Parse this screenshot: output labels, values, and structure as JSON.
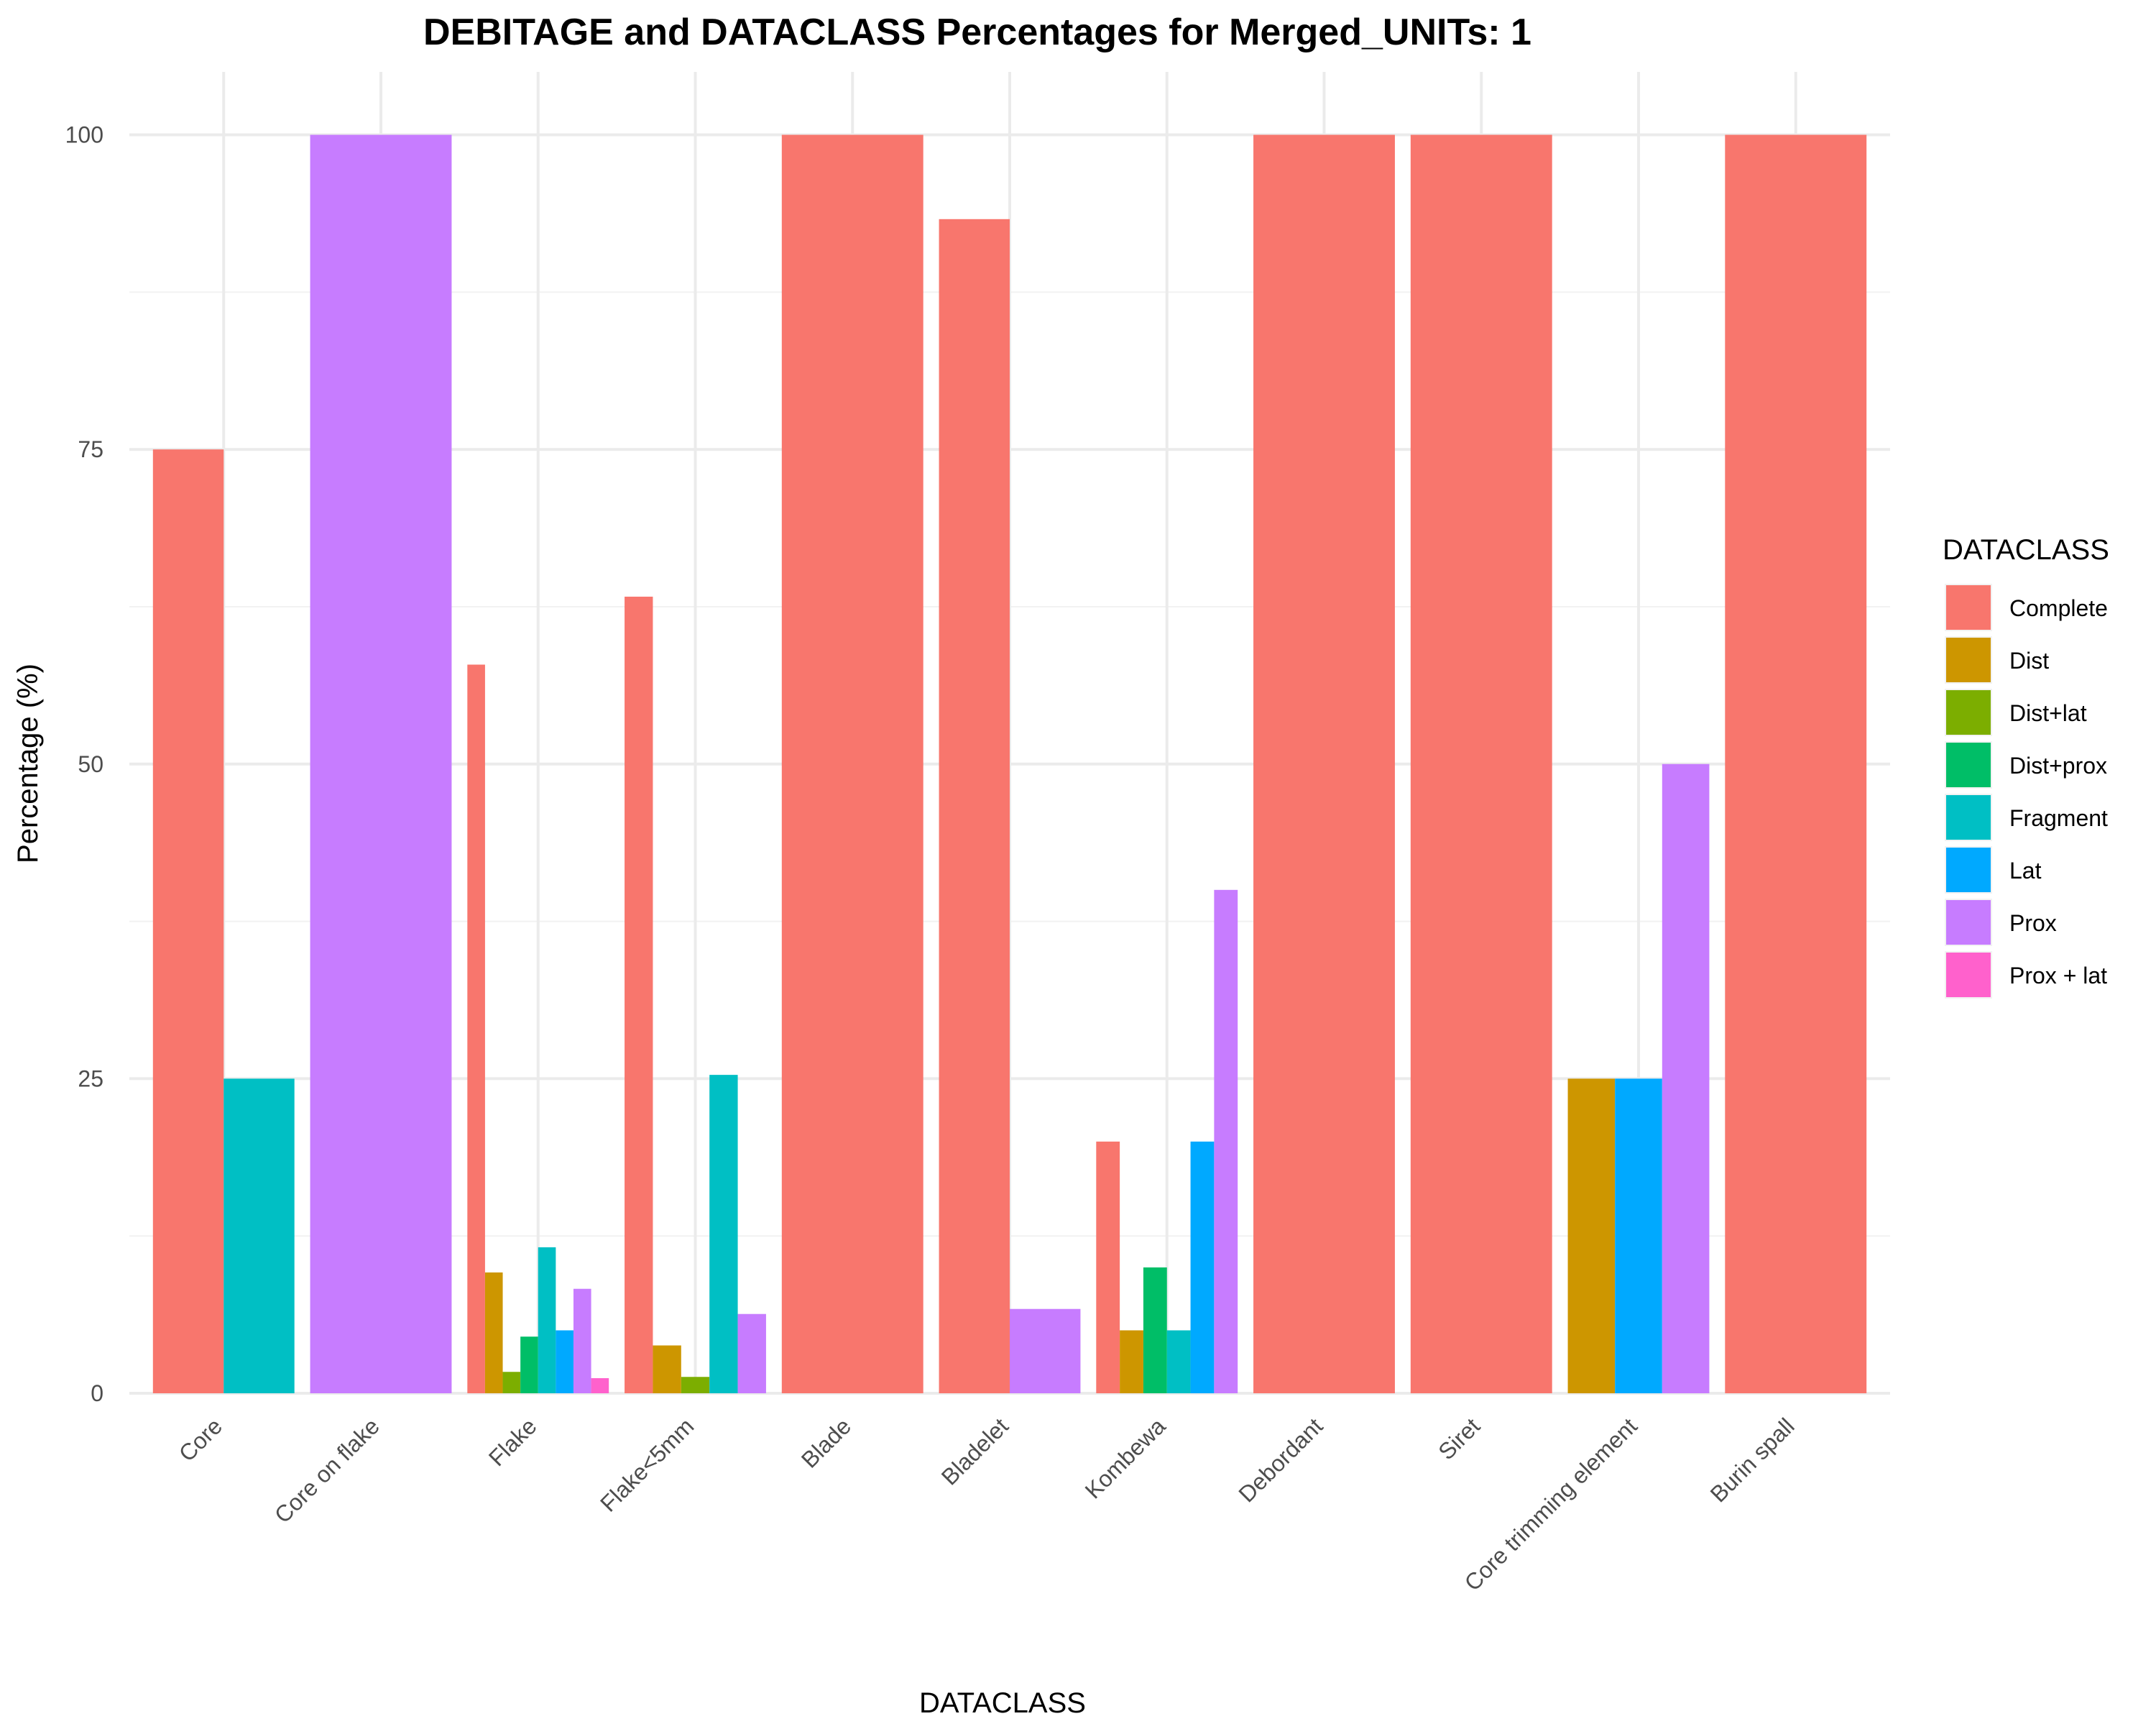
{
  "chart_data": {
    "type": "bar",
    "title": "DEBITAGE and DATACLASS Percentages for Merged_UNITs: 1",
    "xlabel": "DATACLASS",
    "ylabel": "Percentage (%)",
    "ylim": [
      0,
      105
    ],
    "yticks": [
      0,
      25,
      50,
      75,
      100
    ],
    "grid": true,
    "legend_position": "right",
    "legend_title": "DATACLASS",
    "categories": [
      "Core",
      "Core on flake",
      "Flake",
      "Flake<5mm",
      "Blade",
      "Bladelet",
      "Kombewa",
      "Debordant",
      "Siret",
      "Core trimming element",
      "Burin spall"
    ],
    "series": [
      {
        "name": "Complete",
        "color": "#F8766D",
        "values": [
          75,
          null,
          57.9,
          63.3,
          100,
          93.3,
          20,
          100,
          100,
          null,
          100
        ]
      },
      {
        "name": "Dist",
        "color": "#CD9600",
        "values": [
          null,
          null,
          9.6,
          3.8,
          null,
          null,
          5,
          null,
          null,
          25,
          null
        ]
      },
      {
        "name": "Dist+lat",
        "color": "#7CAE00",
        "values": [
          null,
          null,
          1.7,
          1.3,
          null,
          null,
          null,
          null,
          null,
          null,
          null
        ]
      },
      {
        "name": "Dist+prox",
        "color": "#00BE67",
        "values": [
          null,
          null,
          4.5,
          null,
          null,
          null,
          10,
          null,
          null,
          null,
          null
        ]
      },
      {
        "name": "Fragment",
        "color": "#00BFC4",
        "values": [
          25,
          null,
          11.6,
          25.3,
          null,
          null,
          5,
          null,
          null,
          null,
          null
        ]
      },
      {
        "name": "Lat",
        "color": "#00A9FF",
        "values": [
          null,
          null,
          5,
          null,
          null,
          null,
          20,
          null,
          null,
          25,
          null
        ]
      },
      {
        "name": "Prox",
        "color": "#C77CFF",
        "values": [
          null,
          100,
          8.3,
          6.3,
          null,
          6.7,
          40,
          null,
          null,
          50,
          null
        ]
      },
      {
        "name": "Prox + lat",
        "color": "#FF61CC",
        "values": [
          null,
          null,
          1.2,
          null,
          null,
          null,
          null,
          null,
          null,
          null,
          null
        ]
      }
    ]
  }
}
